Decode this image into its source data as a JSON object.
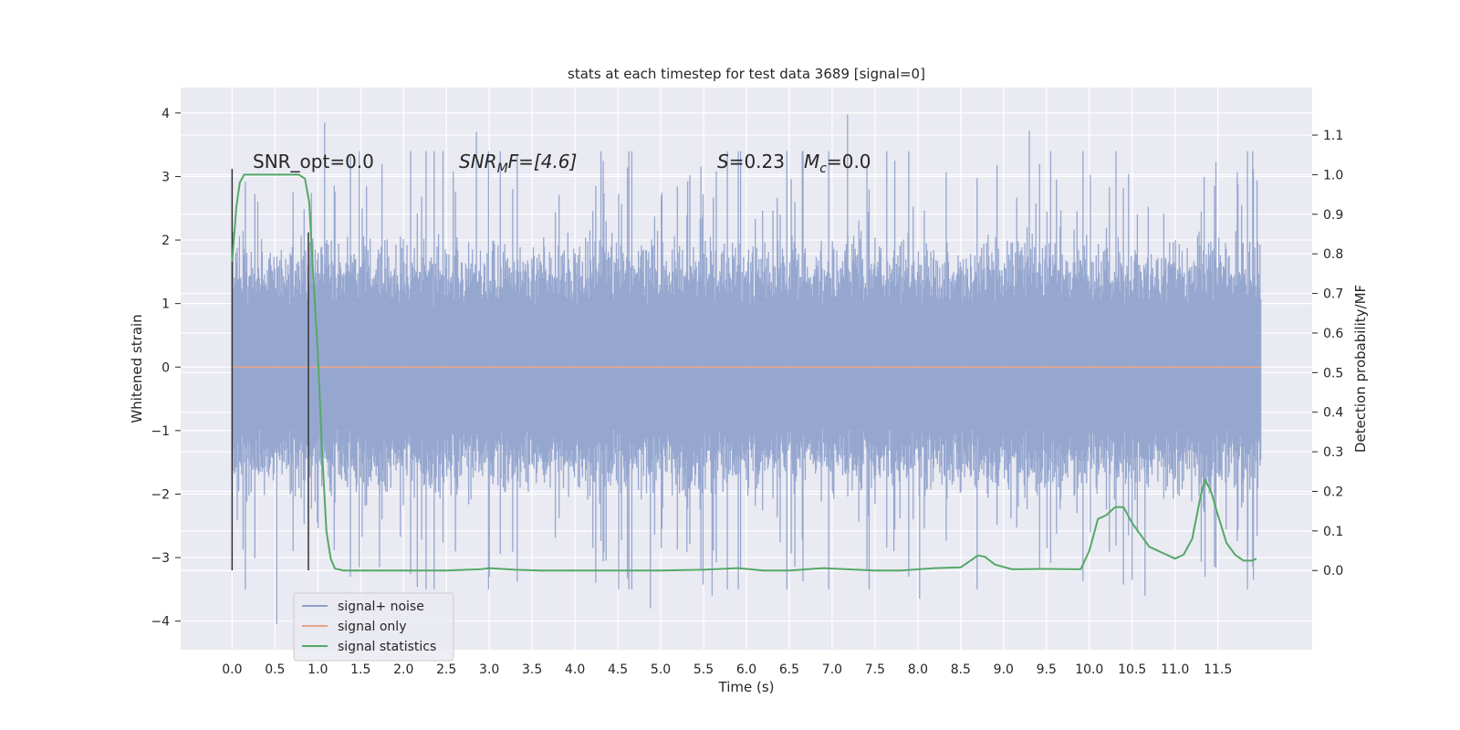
{
  "chart_data": {
    "type": "line",
    "title": "stats at each timestep for test data 3689 [signal=0]",
    "xlabel": "Time (s)",
    "ylabel": "Whitened strain",
    "y2label": "Detection probability/MF",
    "xlim": [
      -0.6,
      12.6
    ],
    "ylim": [
      -4.45,
      4.4
    ],
    "y2lim": [
      -0.2,
      1.22
    ],
    "xticks": [
      "0.0",
      "0.5",
      "1.0",
      "1.5",
      "2.0",
      "2.5",
      "3.0",
      "3.5",
      "4.0",
      "4.5",
      "5.0",
      "5.5",
      "6.0",
      "6.5",
      "7.0",
      "7.5",
      "8.0",
      "8.5",
      "9.0",
      "9.5",
      "10.0",
      "10.5",
      "11.0",
      "11.5"
    ],
    "yticks": [
      "4",
      "3",
      "2",
      "1",
      "0",
      "−1",
      "−2",
      "−3",
      "−4"
    ],
    "y2ticks": [
      "1.1",
      "1.0",
      "0.9",
      "0.8",
      "0.7",
      "0.6",
      "0.5",
      "0.4",
      "0.3",
      "0.2",
      "0.1",
      "0.0"
    ],
    "grid": true,
    "legend_position": "lower-left",
    "colors": {
      "noise": "#8da0cb",
      "signal": "#e8a488",
      "stats": "#55a868",
      "vline": "#333333",
      "background": "#eaeaf2",
      "grid": "#ffffff"
    },
    "annotations": {
      "snr_opt": "SNR_opt=0.0",
      "snr_mf_main": "SNR",
      "snr_mf_sub": "M",
      "snr_mf_rest": "F=[4.6]",
      "s_main": "S",
      "s_rest": "=0.23",
      "mc_main": "M",
      "mc_sub": "c",
      "mc_rest": "=0.0"
    },
    "vertical_lines": [
      {
        "x": 0.0,
        "y_range": [
          -3.2,
          3.12
        ]
      },
      {
        "x": 0.89,
        "y_range": [
          -3.2,
          2.12
        ]
      }
    ],
    "series": [
      {
        "name": "signal+ noise",
        "axis": "left",
        "x_range": [
          0.0,
          12.0
        ],
        "typical_amplitude": 1.25,
        "peak_amplitude": 4.0,
        "outliers": [
          [
            0.3,
            2.6
          ],
          [
            0.52,
            -4.05
          ],
          [
            1.08,
            3.85
          ],
          [
            1.38,
            -3.3
          ],
          [
            1.72,
            -3.15
          ],
          [
            2.58,
            3.08
          ],
          [
            2.85,
            3.7
          ],
          [
            3.0,
            -3.3
          ],
          [
            4.88,
            -3.8
          ],
          [
            5.6,
            -3.6
          ],
          [
            7.18,
            3.98
          ],
          [
            7.72,
            -2.9
          ],
          [
            8.02,
            -3.65
          ],
          [
            9.3,
            3.72
          ],
          [
            10.5,
            -3.35
          ],
          [
            10.65,
            -3.6
          ],
          [
            11.35,
            -3.3
          ],
          [
            11.85,
            -2.95
          ]
        ]
      },
      {
        "name": "signal only",
        "axis": "left",
        "x": [
          0.0,
          12.0
        ],
        "values": [
          0.0,
          0.0
        ]
      },
      {
        "name": "signal statistics",
        "axis": "right",
        "x": [
          0.0,
          0.05,
          0.09,
          0.14,
          0.2,
          0.3,
          0.5,
          0.7,
          0.78,
          0.85,
          0.9,
          0.95,
          1.0,
          1.05,
          1.1,
          1.15,
          1.2,
          1.3,
          1.5,
          2.0,
          2.5,
          2.9,
          3.0,
          3.3,
          3.6,
          4.0,
          4.5,
          5.0,
          5.5,
          5.9,
          6.2,
          6.5,
          6.9,
          7.0,
          7.5,
          7.8,
          8.2,
          8.5,
          8.7,
          8.78,
          8.9,
          9.1,
          9.5,
          9.9,
          10.0,
          10.1,
          10.2,
          10.3,
          10.4,
          10.5,
          10.7,
          10.9,
          11.0,
          11.1,
          11.2,
          11.3,
          11.35,
          11.42,
          11.5,
          11.6,
          11.7,
          11.8,
          11.9,
          11.95
        ],
        "values": [
          0.78,
          0.92,
          0.98,
          1.0,
          1.0,
          1.0,
          1.0,
          1.0,
          1.0,
          0.99,
          0.93,
          0.73,
          0.55,
          0.3,
          0.1,
          0.03,
          0.005,
          0.0,
          0.0,
          0.0,
          0.0,
          0.003,
          0.006,
          0.002,
          0.0,
          0.0,
          0.0,
          0.0,
          0.002,
          0.006,
          0.0,
          0.0,
          0.006,
          0.005,
          0.0,
          0.0,
          0.006,
          0.008,
          0.038,
          0.035,
          0.015,
          0.003,
          0.004,
          0.003,
          0.05,
          0.13,
          0.14,
          0.16,
          0.16,
          0.12,
          0.06,
          0.04,
          0.03,
          0.04,
          0.08,
          0.19,
          0.23,
          0.2,
          0.14,
          0.07,
          0.04,
          0.025,
          0.025,
          0.03
        ]
      }
    ]
  }
}
